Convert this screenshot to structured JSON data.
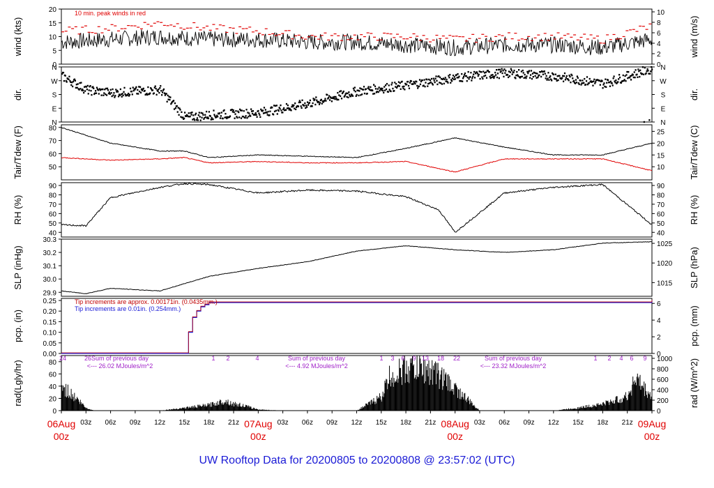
{
  "title": "UW Rooftop Data for 20200805  to  20200808 @ 23:57:02  (UTC)",
  "colors": {
    "title": "#1a1ad6",
    "day_labels": "#e00000",
    "series": "#000000",
    "dewpoint": "#e00000",
    "peak_wind": "#e00000",
    "rain_mm": "#c00000",
    "rain_in": "#1a1ad6",
    "rad_annotation": "#a020c8"
  },
  "time_axis": {
    "ticks": [
      "03z",
      "06z",
      "09z",
      "12z",
      "15z",
      "18z",
      "21z",
      "03z",
      "06z",
      "09z",
      "12z",
      "15z",
      "18z",
      "21z",
      "03z",
      "06z",
      "09z",
      "12z",
      "15z",
      "18z",
      "21z"
    ],
    "day_labels": [
      {
        "date": "06Aug",
        "hour": "00z"
      },
      {
        "date": "07Aug",
        "hour": "00z"
      },
      {
        "date": "08Aug",
        "hour": "00z"
      },
      {
        "date": "09Aug",
        "hour": "00z"
      }
    ]
  },
  "chart_data": [
    {
      "type": "line",
      "name": "wind",
      "ylabel": "wind (kts)",
      "ylabel_right": "wind (m/s)",
      "ylim": [
        0,
        20
      ],
      "yticks": [
        0,
        5,
        10,
        15,
        20
      ],
      "yticks_right": [
        "0",
        "2",
        "4",
        "6",
        "8",
        "10"
      ],
      "annotation": "10 min. peak winds in red",
      "x_hours": [
        0,
        6,
        12,
        18,
        24,
        30,
        36,
        42,
        48,
        54,
        60,
        66,
        72
      ],
      "values": [
        8,
        9,
        10,
        9,
        9,
        8,
        8,
        7,
        6,
        7,
        7,
        6,
        9
      ],
      "peak_values": [
        12,
        13,
        15,
        13,
        12,
        10,
        10,
        10,
        9,
        10,
        10,
        9,
        14
      ]
    },
    {
      "type": "scatter",
      "name": "dir",
      "ylabel": "dir.",
      "ylabel_right": "dir.",
      "yticks": [
        "N",
        "E",
        "S",
        "W",
        "N"
      ],
      "ylim": [
        0,
        360
      ],
      "x_hours": [
        0,
        3,
        6,
        12,
        15,
        18,
        24,
        30,
        36,
        42,
        48,
        54,
        60,
        66,
        72
      ],
      "values": [
        300,
        210,
        190,
        210,
        30,
        45,
        60,
        120,
        200,
        240,
        290,
        320,
        300,
        250,
        350
      ]
    },
    {
      "type": "line",
      "name": "temp",
      "ylabel": "Tair/Tdew (F)",
      "ylabel_right": "Tair/Tdew (C)",
      "ylim": [
        40,
        82
      ],
      "yticks": [
        50,
        60,
        70,
        80
      ],
      "yticks_right": [
        "10",
        "15",
        "20",
        "25"
      ],
      "x_hours": [
        0,
        6,
        12,
        15,
        18,
        24,
        30,
        36,
        42,
        48,
        54,
        60,
        66,
        72
      ],
      "series": [
        {
          "values": [
            80,
            68,
            62,
            62,
            57,
            59,
            58,
            57,
            64,
            72,
            65,
            59,
            59,
            68
          ]
        },
        {
          "values": [
            57,
            55,
            56,
            57,
            53,
            54,
            53,
            53,
            54,
            46,
            56,
            56,
            56,
            47
          ]
        }
      ]
    },
    {
      "type": "line",
      "name": "rh",
      "ylabel": "RH (%)",
      "ylabel_right": "RH (%)",
      "ylim": [
        35,
        93
      ],
      "yticks": [
        40,
        50,
        60,
        70,
        80,
        90
      ],
      "x_hours": [
        0,
        3,
        6,
        12,
        15,
        18,
        24,
        30,
        36,
        42,
        46,
        48,
        54,
        60,
        66,
        72
      ],
      "values": [
        48,
        47,
        77,
        88,
        92,
        91,
        82,
        85,
        84,
        78,
        64,
        40,
        82,
        88,
        91,
        48
      ]
    },
    {
      "type": "line",
      "name": "slp",
      "ylabel": "SLP (inHg)",
      "ylabel_right": "SLP (hPa)",
      "ylim": [
        29.87,
        30.3
      ],
      "yticks": [
        29.9,
        30.0,
        30.1,
        30.2,
        30.3
      ],
      "yticks_right": [
        "1015",
        "1020",
        "1025"
      ],
      "x_hours": [
        0,
        3,
        6,
        12,
        18,
        24,
        30,
        36,
        42,
        48,
        54,
        60,
        66,
        72
      ],
      "values": [
        29.91,
        29.89,
        29.93,
        29.91,
        30.02,
        30.08,
        30.13,
        30.21,
        30.25,
        30.22,
        30.2,
        30.22,
        30.27,
        30.28
      ]
    },
    {
      "type": "line",
      "name": "pcp",
      "ylabel": "pcp. (in)",
      "ylabel_right": "pcp. (mm)",
      "ylim": [
        0,
        0.26
      ],
      "yticks": [
        0.0,
        0.05,
        0.1,
        0.15,
        0.2,
        0.25
      ],
      "yticks_right": [
        "0",
        "2",
        "4",
        "6"
      ],
      "annotation_mm": "Tip increments are approx. 0.00171in. (0.0435mm.)",
      "annotation_in": "Tip increments are 0.01in. (0.254mm.)",
      "x_hours": [
        0,
        15,
        15.5,
        16,
        16.5,
        17,
        17.5,
        18,
        63,
        72
      ],
      "values": [
        0,
        0,
        0.1,
        0.17,
        0.2,
        0.22,
        0.23,
        0.24,
        0.24,
        0.25
      ]
    },
    {
      "type": "area",
      "name": "rad",
      "ylabel": "rad(Lgly/hr)",
      "ylabel_right": "rad (W/m^2)",
      "ylim": [
        0,
        90
      ],
      "yticks": [
        0,
        20,
        40,
        60,
        80
      ],
      "yticks_right": [
        "0",
        "200",
        "400",
        "600",
        "800",
        "1000"
      ],
      "hour_marks": [
        "24",
        "26",
        "1",
        "2",
        "4",
        "1",
        "3",
        "6",
        "9",
        "13",
        "18",
        "22",
        "1",
        "2",
        "4",
        "6",
        "9"
      ],
      "day_sums": [
        {
          "line1": "Sum of previous day",
          "line2": "<--- 26.02 MJoules/m^2"
        },
        {
          "line1": "Sum of previous day",
          "line2": "<--- 4.92 MJoules/m^2"
        },
        {
          "line1": "Sum of previous day",
          "line2": "<--- 23.32 MJoules/m^2"
        }
      ],
      "x_hours": [
        0,
        2,
        3,
        4,
        12,
        15,
        18,
        20,
        21,
        22,
        24,
        27,
        36,
        39,
        40,
        42,
        44,
        46,
        48,
        51,
        60,
        63,
        66,
        69,
        70,
        71,
        72
      ],
      "values": [
        45,
        20,
        5,
        0,
        0,
        5,
        10,
        18,
        12,
        10,
        2,
        0,
        0,
        25,
        60,
        75,
        78,
        65,
        40,
        0,
        0,
        5,
        12,
        25,
        60,
        40,
        25
      ]
    }
  ]
}
